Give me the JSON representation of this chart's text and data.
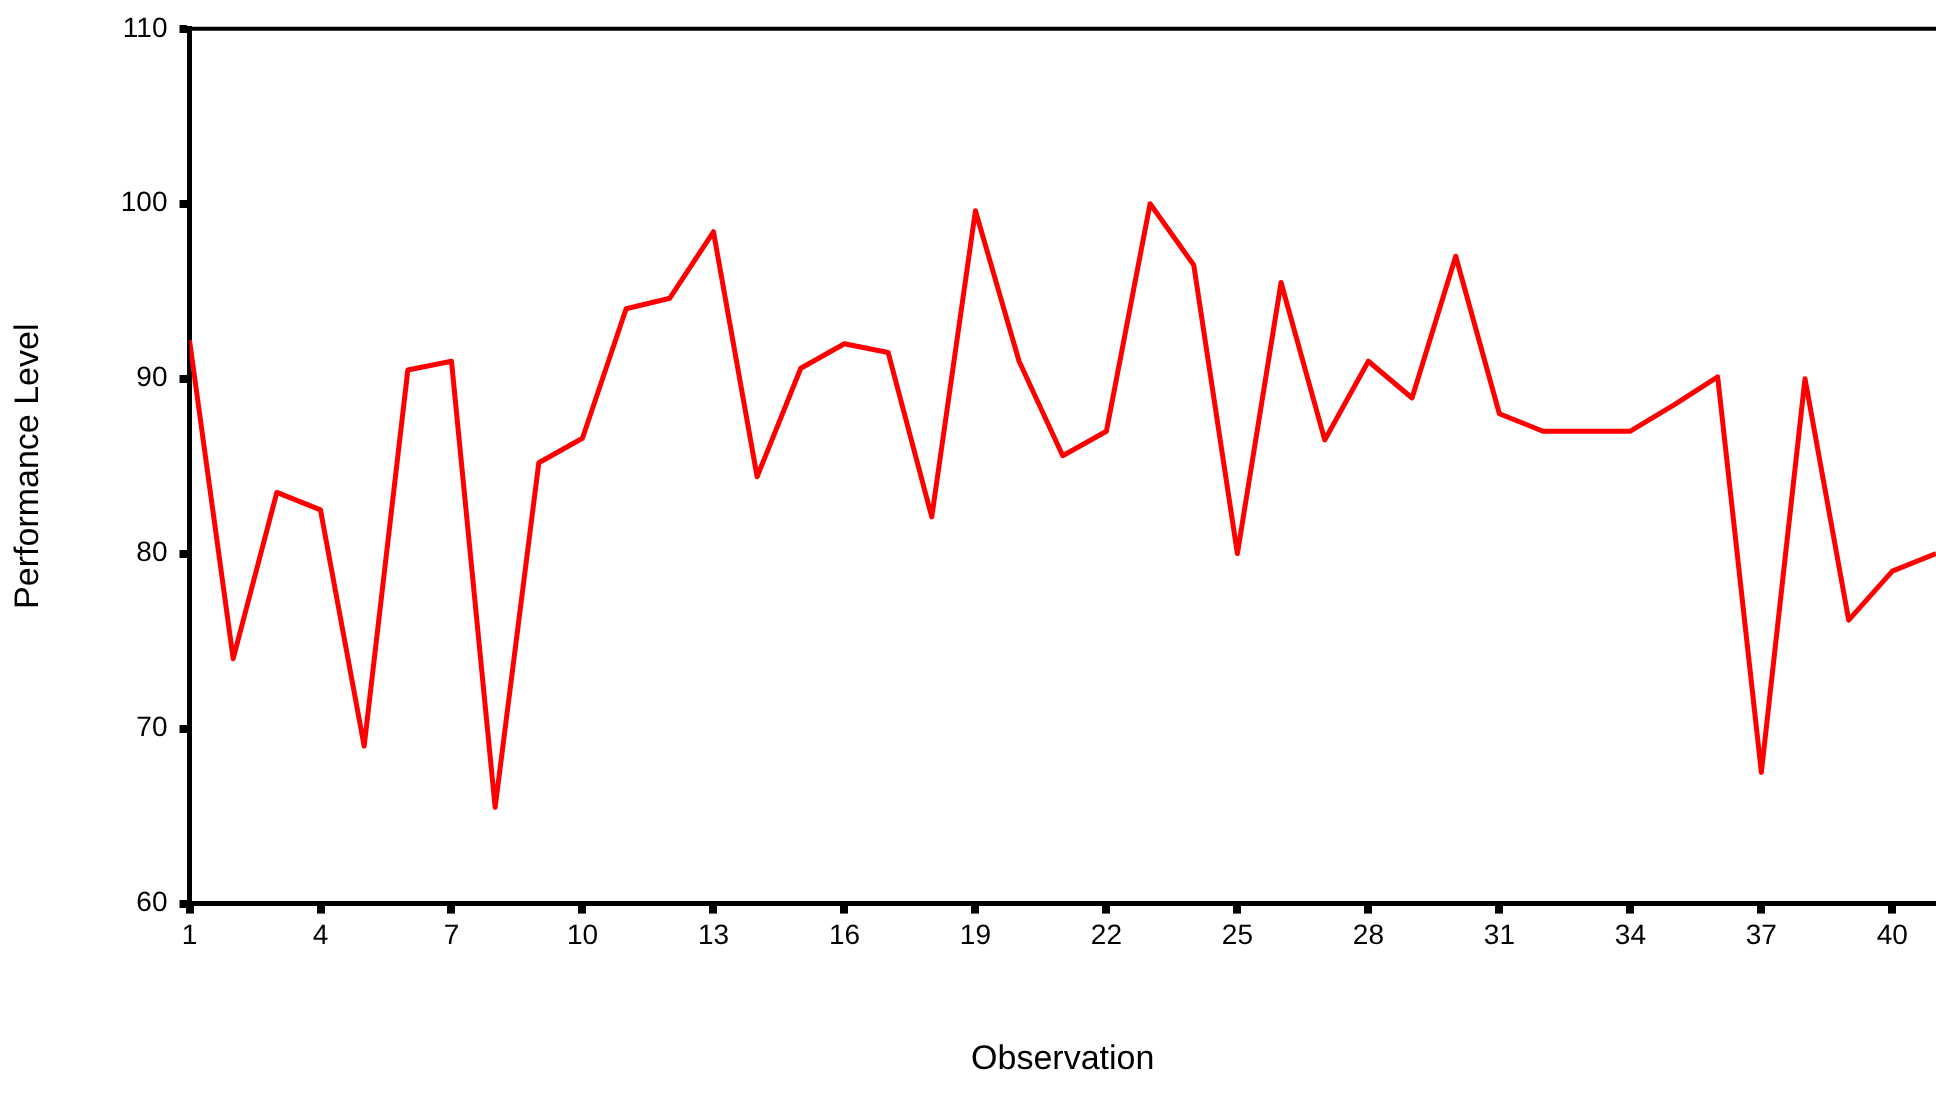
{
  "chart_data": {
    "type": "line",
    "xlabel": "Observation",
    "ylabel": "Performance Level",
    "x": [
      1,
      2,
      3,
      4,
      5,
      6,
      7,
      8,
      9,
      10,
      11,
      12,
      13,
      14,
      15,
      16,
      17,
      18,
      19,
      20,
      21,
      22,
      23,
      24,
      25,
      26,
      27,
      28,
      29,
      30,
      31,
      32,
      33,
      34,
      35,
      36,
      37,
      38,
      39,
      40,
      41
    ],
    "series": [
      {
        "color": "#ff0000",
        "values": [
          92.2,
          74,
          83.5,
          82.5,
          69,
          90.5,
          91,
          65.5,
          85.2,
          86.6,
          94,
          94.6,
          98.4,
          84.4,
          90.6,
          92,
          91.5,
          82.1,
          99.6,
          91,
          85.6,
          87,
          100,
          96.5,
          80,
          95.5,
          86.5,
          91,
          88.9,
          97,
          88,
          87,
          87,
          87,
          88.5,
          90.1,
          67.5,
          90,
          76.2,
          79,
          80
        ]
      }
    ],
    "xlim": [
      1,
      41
    ],
    "xticks": [
      1,
      4,
      7,
      10,
      13,
      16,
      19,
      22,
      25,
      28,
      31,
      34,
      37,
      40
    ],
    "ylim": [
      60,
      110
    ],
    "yticks": [
      60,
      70,
      80,
      90,
      100,
      110
    ],
    "grid": false,
    "legend": false,
    "marker": "none",
    "line_style": "solid"
  }
}
